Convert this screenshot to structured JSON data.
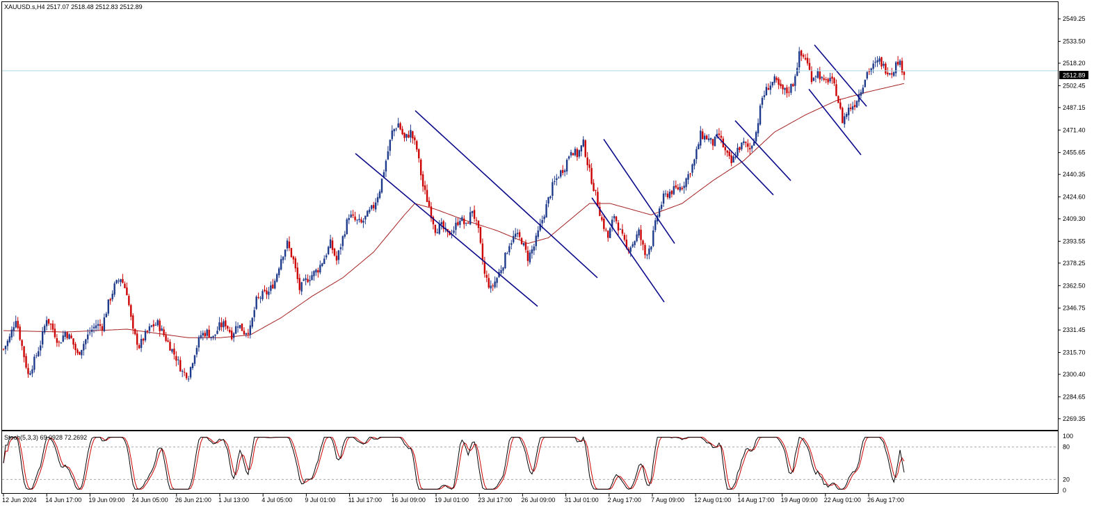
{
  "header": {
    "symbol": "XAUUSD.s,H4",
    "ohlc": "2517.07 2518.48 2512.83 2512.89"
  },
  "price_axis": {
    "ticks": [
      "2549.25",
      "2533.50",
      "2518.20",
      "2502.45",
      "2487.15",
      "2471.40",
      "2455.65",
      "2440.35",
      "2424.60",
      "2409.30",
      "2393.55",
      "2378.25",
      "2362.50",
      "2346.75",
      "2331.45",
      "2315.70",
      "2300.40",
      "2284.65",
      "2269.35"
    ],
    "current_price": "2512.89"
  },
  "stoch": {
    "label": "Stoch(5,3,3) 69.0928 72.2692",
    "ticks": [
      "100",
      "80",
      "20",
      "0"
    ]
  },
  "time_axis": {
    "ticks": [
      "12 Jun 2024",
      "14 Jun 17:00",
      "19 Jun 09:00",
      "24 Jun 05:00",
      "26 Jun 21:00",
      "1 Jul 13:00",
      "4 Jul 05:00",
      "9 Jul 01:00",
      "11 Jul 17:00",
      "16 Jul 09:00",
      "19 Jul 01:00",
      "23 Jul 17:00",
      "26 Jul 09:00",
      "31 Jul 01:00",
      "2 Aug 17:00",
      "7 Aug 09:00",
      "12 Aug 01:00",
      "14 Aug 17:00",
      "19 Aug 09:00",
      "22 Aug 01:00",
      "26 Aug 17:00"
    ]
  },
  "colors": {
    "bull": "#1e3a8a",
    "bear": "#cc0000",
    "ma": "#a52020",
    "channel": "#0a0a8a",
    "price_line": "#add8e6",
    "stoch_main": "#000000",
    "stoch_signal": "#cc0000"
  },
  "chart_data": {
    "type": "candlestick",
    "ylim": [
      2262,
      2560
    ],
    "close_path": [
      [
        0,
        2318
      ],
      [
        3,
        2326
      ],
      [
        6,
        2340
      ],
      [
        9,
        2320
      ],
      [
        12,
        2300
      ],
      [
        15,
        2310
      ],
      [
        18,
        2322
      ],
      [
        21,
        2340
      ],
      [
        24,
        2332
      ],
      [
        27,
        2322
      ],
      [
        30,
        2330
      ],
      [
        33,
        2325
      ],
      [
        36,
        2314
      ],
      [
        39,
        2322
      ],
      [
        42,
        2330
      ],
      [
        45,
        2335
      ],
      [
        48,
        2334
      ],
      [
        51,
        2350
      ],
      [
        54,
        2362
      ],
      [
        57,
        2368
      ],
      [
        60,
        2358
      ],
      [
        63,
        2330
      ],
      [
        66,
        2320
      ],
      [
        69,
        2328
      ],
      [
        72,
        2334
      ],
      [
        75,
        2336
      ],
      [
        78,
        2328
      ],
      [
        81,
        2320
      ],
      [
        84,
        2312
      ],
      [
        87,
        2302
      ],
      [
        90,
        2300
      ],
      [
        93,
        2316
      ],
      [
        96,
        2328
      ],
      [
        99,
        2330
      ],
      [
        102,
        2326
      ],
      [
        105,
        2334
      ],
      [
        108,
        2336
      ],
      [
        111,
        2328
      ],
      [
        114,
        2336
      ],
      [
        117,
        2330
      ],
      [
        120,
        2332
      ],
      [
        123,
        2352
      ],
      [
        126,
        2356
      ],
      [
        129,
        2358
      ],
      [
        132,
        2366
      ],
      [
        135,
        2382
      ],
      [
        138,
        2392
      ],
      [
        141,
        2380
      ],
      [
        144,
        2360
      ],
      [
        147,
        2366
      ],
      [
        150,
        2370
      ],
      [
        153,
        2374
      ],
      [
        156,
        2382
      ],
      [
        159,
        2392
      ],
      [
        162,
        2380
      ],
      [
        165,
        2396
      ],
      [
        168,
        2412
      ],
      [
        171,
        2408
      ],
      [
        174,
        2406
      ],
      [
        177,
        2412
      ],
      [
        180,
        2418
      ],
      [
        183,
        2430
      ],
      [
        186,
        2450
      ],
      [
        189,
        2470
      ],
      [
        192,
        2476
      ],
      [
        195,
        2465
      ],
      [
        198,
        2470
      ],
      [
        201,
        2458
      ],
      [
        204,
        2432
      ],
      [
        207,
        2418
      ],
      [
        210,
        2402
      ],
      [
        213,
        2404
      ],
      [
        216,
        2398
      ],
      [
        219,
        2402
      ],
      [
        222,
        2410
      ],
      [
        225,
        2404
      ],
      [
        228,
        2416
      ],
      [
        231,
        2400
      ],
      [
        234,
        2370
      ],
      [
        237,
        2360
      ],
      [
        240,
        2368
      ],
      [
        243,
        2378
      ],
      [
        246,
        2392
      ],
      [
        249,
        2398
      ],
      [
        252,
        2394
      ],
      [
        255,
        2382
      ],
      [
        258,
        2390
      ],
      [
        261,
        2404
      ],
      [
        264,
        2418
      ],
      [
        267,
        2432
      ],
      [
        270,
        2440
      ],
      [
        273,
        2446
      ],
      [
        276,
        2458
      ],
      [
        279,
        2454
      ],
      [
        282,
        2462
      ],
      [
        285,
        2442
      ],
      [
        288,
        2426
      ],
      [
        291,
        2408
      ],
      [
        294,
        2396
      ],
      [
        297,
        2412
      ],
      [
        300,
        2400
      ],
      [
        303,
        2388
      ],
      [
        306,
        2392
      ],
      [
        309,
        2400
      ],
      [
        312,
        2384
      ],
      [
        315,
        2392
      ],
      [
        318,
        2412
      ],
      [
        321,
        2424
      ],
      [
        324,
        2428
      ],
      [
        327,
        2430
      ],
      [
        330,
        2432
      ],
      [
        333,
        2440
      ],
      [
        336,
        2450
      ],
      [
        339,
        2468
      ],
      [
        342,
        2466
      ],
      [
        345,
        2462
      ],
      [
        348,
        2468
      ],
      [
        351,
        2456
      ],
      [
        354,
        2448
      ],
      [
        357,
        2458
      ],
      [
        360,
        2462
      ],
      [
        363,
        2458
      ],
      [
        366,
        2470
      ],
      [
        369,
        2494
      ],
      [
        372,
        2502
      ],
      [
        375,
        2506
      ],
      [
        378,
        2500
      ],
      [
        381,
        2498
      ],
      [
        384,
        2504
      ],
      [
        387,
        2524
      ],
      [
        390,
        2522
      ],
      [
        393,
        2508
      ],
      [
        396,
        2512
      ],
      [
        399,
        2504
      ],
      [
        402,
        2508
      ],
      [
        405,
        2498
      ],
      [
        408,
        2478
      ],
      [
        411,
        2486
      ],
      [
        414,
        2490
      ],
      [
        417,
        2500
      ],
      [
        420,
        2512
      ],
      [
        423,
        2516
      ],
      [
        426,
        2520
      ],
      [
        429,
        2514
      ],
      [
        432,
        2512
      ],
      [
        435,
        2520
      ],
      [
        438,
        2512
      ]
    ],
    "ma_path": [
      [
        0,
        2331
      ],
      [
        30,
        2330
      ],
      [
        60,
        2332
      ],
      [
        90,
        2326
      ],
      [
        105,
        2326
      ],
      [
        120,
        2328
      ],
      [
        135,
        2340
      ],
      [
        150,
        2355
      ],
      [
        165,
        2368
      ],
      [
        180,
        2386
      ],
      [
        195,
        2412
      ],
      [
        200,
        2420
      ],
      [
        210,
        2416
      ],
      [
        225,
        2408
      ],
      [
        240,
        2401
      ],
      [
        255,
        2392
      ],
      [
        265,
        2396
      ],
      [
        275,
        2408
      ],
      [
        285,
        2420
      ],
      [
        295,
        2420
      ],
      [
        305,
        2416
      ],
      [
        315,
        2412
      ],
      [
        330,
        2420
      ],
      [
        345,
        2436
      ],
      [
        360,
        2450
      ],
      [
        375,
        2470
      ],
      [
        390,
        2482
      ],
      [
        405,
        2492
      ],
      [
        420,
        2498
      ],
      [
        438,
        2504
      ]
    ],
    "channels": [
      {
        "points": [
          [
            2455,
            2525
          ],
          [
            2444,
            2440
          ],
          [
            2393,
            2370
          ]
        ]
      },
      {
        "points": [
          [
            2426,
            2599
          ],
          [
            2428,
            2468
          ],
          [
            2381,
            2408
          ]
        ]
      },
      {
        "points": [
          [
            2388,
            2492
          ],
          [
            2369,
            2471
          ],
          [
            2355,
            2408
          ]
        ]
      },
      {
        "points": [
          [
            2445,
            2526
          ],
          [
            2468,
            2485
          ],
          [
            2482,
            2396
          ]
        ]
      },
      {
        "points": [
          [
            2516,
            2499
          ],
          [
            2435,
            2433
          ],
          [
            2404,
            2408
          ]
        ]
      },
      {
        "points": [
          [
            2473,
            2484
          ],
          [
            2498,
            2462
          ],
          [
            2433,
            2453
          ]
        ]
      },
      {
        "points": [
          [
            2456,
            2532
          ],
          [
            2507,
            2496
          ],
          [
            2487,
            2499
          ]
        ]
      }
    ],
    "stoch_range": [
      0,
      100
    ],
    "stoch_levels": [
      80,
      20
    ]
  }
}
